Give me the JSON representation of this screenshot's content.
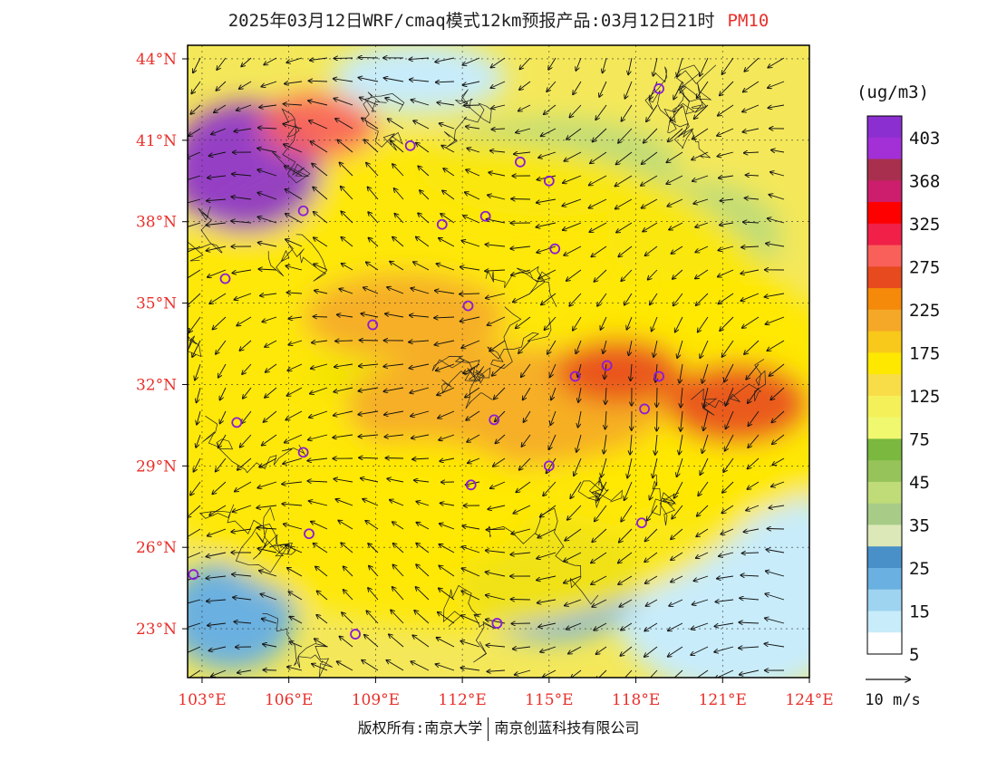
{
  "title": {
    "main": "2025年03月12日WRF/cmaq模式12km预报产品:03月12日21时",
    "variable": "PM10"
  },
  "colors": {
    "title_variable": "#e8302a",
    "axis_labels": "#e8302a",
    "stations": "#8a1cd6"
  },
  "map": {
    "lon_min": 102.5,
    "lon_max": 124.0,
    "lat_min": 21.2,
    "lat_max": 44.5,
    "lat_ticks": [
      {
        "value": 44,
        "label": "44°N"
      },
      {
        "value": 41,
        "label": "41°N"
      },
      {
        "value": 38,
        "label": "38°N"
      },
      {
        "value": 35,
        "label": "35°N"
      },
      {
        "value": 32,
        "label": "32°N"
      },
      {
        "value": 29,
        "label": "29°N"
      },
      {
        "value": 26,
        "label": "26°N"
      },
      {
        "value": 23,
        "label": "23°N"
      }
    ],
    "lon_ticks": [
      {
        "value": 103,
        "label": "103°E"
      },
      {
        "value": 106,
        "label": "106°E"
      },
      {
        "value": 109,
        "label": "109°E"
      },
      {
        "value": 112,
        "label": "112°E"
      },
      {
        "value": 115,
        "label": "115°E"
      },
      {
        "value": 118,
        "label": "118°E"
      },
      {
        "value": 121,
        "label": "121°E"
      },
      {
        "value": 124,
        "label": "124°E"
      }
    ],
    "stations": [
      {
        "lon": 118.8,
        "lat": 42.9
      },
      {
        "lon": 110.2,
        "lat": 40.8
      },
      {
        "lon": 114.0,
        "lat": 40.2
      },
      {
        "lon": 115.0,
        "lat": 39.5
      },
      {
        "lon": 106.5,
        "lat": 38.4
      },
      {
        "lon": 111.3,
        "lat": 37.9
      },
      {
        "lon": 112.8,
        "lat": 38.2
      },
      {
        "lon": 115.2,
        "lat": 37.0
      },
      {
        "lon": 103.8,
        "lat": 35.9
      },
      {
        "lon": 112.2,
        "lat": 34.9
      },
      {
        "lon": 108.9,
        "lat": 34.2
      },
      {
        "lon": 117.0,
        "lat": 32.7
      },
      {
        "lon": 118.8,
        "lat": 32.3
      },
      {
        "lon": 115.9,
        "lat": 32.3
      },
      {
        "lon": 113.1,
        "lat": 30.7
      },
      {
        "lon": 118.3,
        "lat": 31.1
      },
      {
        "lon": 104.2,
        "lat": 30.6
      },
      {
        "lon": 106.5,
        "lat": 29.5
      },
      {
        "lon": 115.0,
        "lat": 29.0
      },
      {
        "lon": 112.3,
        "lat": 28.3
      },
      {
        "lon": 106.7,
        "lat": 26.5
      },
      {
        "lon": 118.2,
        "lat": 26.9
      },
      {
        "lon": 102.7,
        "lat": 25.0
      },
      {
        "lon": 108.3,
        "lat": 22.8
      },
      {
        "lon": 113.2,
        "lat": 23.2
      }
    ],
    "pm10_blobs": [
      {
        "lon": 112.0,
        "lat": 32.0,
        "rx": 12,
        "ry": 9,
        "value": 140
      },
      {
        "lon": 120.5,
        "lat": 31.5,
        "rx": 5.5,
        "ry": 4.5,
        "value": 165
      },
      {
        "lon": 113.5,
        "lat": 31.2,
        "rx": 5.5,
        "ry": 2.2,
        "value": 200
      },
      {
        "lon": 117.4,
        "lat": 32.5,
        "rx": 2.2,
        "ry": 1.2,
        "value": 260
      },
      {
        "lon": 121.5,
        "lat": 31.3,
        "rx": 2.5,
        "ry": 1.5,
        "value": 230
      },
      {
        "lon": 110.0,
        "lat": 34.5,
        "rx": 3.5,
        "ry": 1.6,
        "value": 185
      },
      {
        "lon": 104.5,
        "lat": 40.0,
        "rx": 2.6,
        "ry": 2.4,
        "value": 410
      },
      {
        "lon": 107.0,
        "lat": 41.5,
        "rx": 2.0,
        "ry": 1.2,
        "value": 300
      },
      {
        "lon": 110.5,
        "lat": 27.5,
        "rx": 4.0,
        "ry": 2.5,
        "value": 150
      }
    ],
    "clean_blobs": [
      {
        "lon": 121.5,
        "lat": 24.5,
        "rx": 4.5,
        "ry": 4.0,
        "value": 5
      },
      {
        "lon": 115.0,
        "lat": 24.8,
        "rx": 3.2,
        "ry": 2.2,
        "value": 15
      },
      {
        "lon": 104.0,
        "lat": 23.5,
        "rx": 2.2,
        "ry": 2.0,
        "value": 15
      },
      {
        "lon": 110.5,
        "lat": 43.3,
        "rx": 3.0,
        "ry": 1.3,
        "value": 5
      },
      {
        "lon": 120.0,
        "lat": 37.5,
        "rx": 3.0,
        "ry": 2.0,
        "value": 35
      },
      {
        "lon": 115.0,
        "lat": 40.0,
        "rx": 4.5,
        "ry": 1.8,
        "value": 40
      },
      {
        "lon": 108.0,
        "lat": 32.3,
        "rx": 1.6,
        "ry": 0.6,
        "value": 45
      }
    ]
  },
  "legend": {
    "unit": "(ug/m3)",
    "labeled": [
      "403",
      "368",
      "325",
      "275",
      "225",
      "175",
      "125",
      "75",
      "45",
      "35",
      "25",
      "15",
      "5"
    ],
    "colors": [
      "#8b2fd0",
      "#a230d6",
      "#a8304e",
      "#cc1e6c",
      "#ff0000",
      "#f02048",
      "#f9605a",
      "#e84a1f",
      "#f58a0a",
      "#f5a828",
      "#f8c81a",
      "#ffe800",
      "#f8dc48",
      "#f4f05a",
      "#f0f870",
      "#7ab840",
      "#96c45a",
      "#c0dc78",
      "#a8cc88",
      "#dce8b8",
      "#4a90c8",
      "#6ab0e0",
      "#9ed4f0",
      "#c8ecfa",
      "#ffffff"
    ]
  },
  "wind_reference": {
    "label": "10 m/s"
  },
  "copyright": {
    "left": "版权所有:南京大学",
    "right": "南京创蓝科技有限公司"
  }
}
